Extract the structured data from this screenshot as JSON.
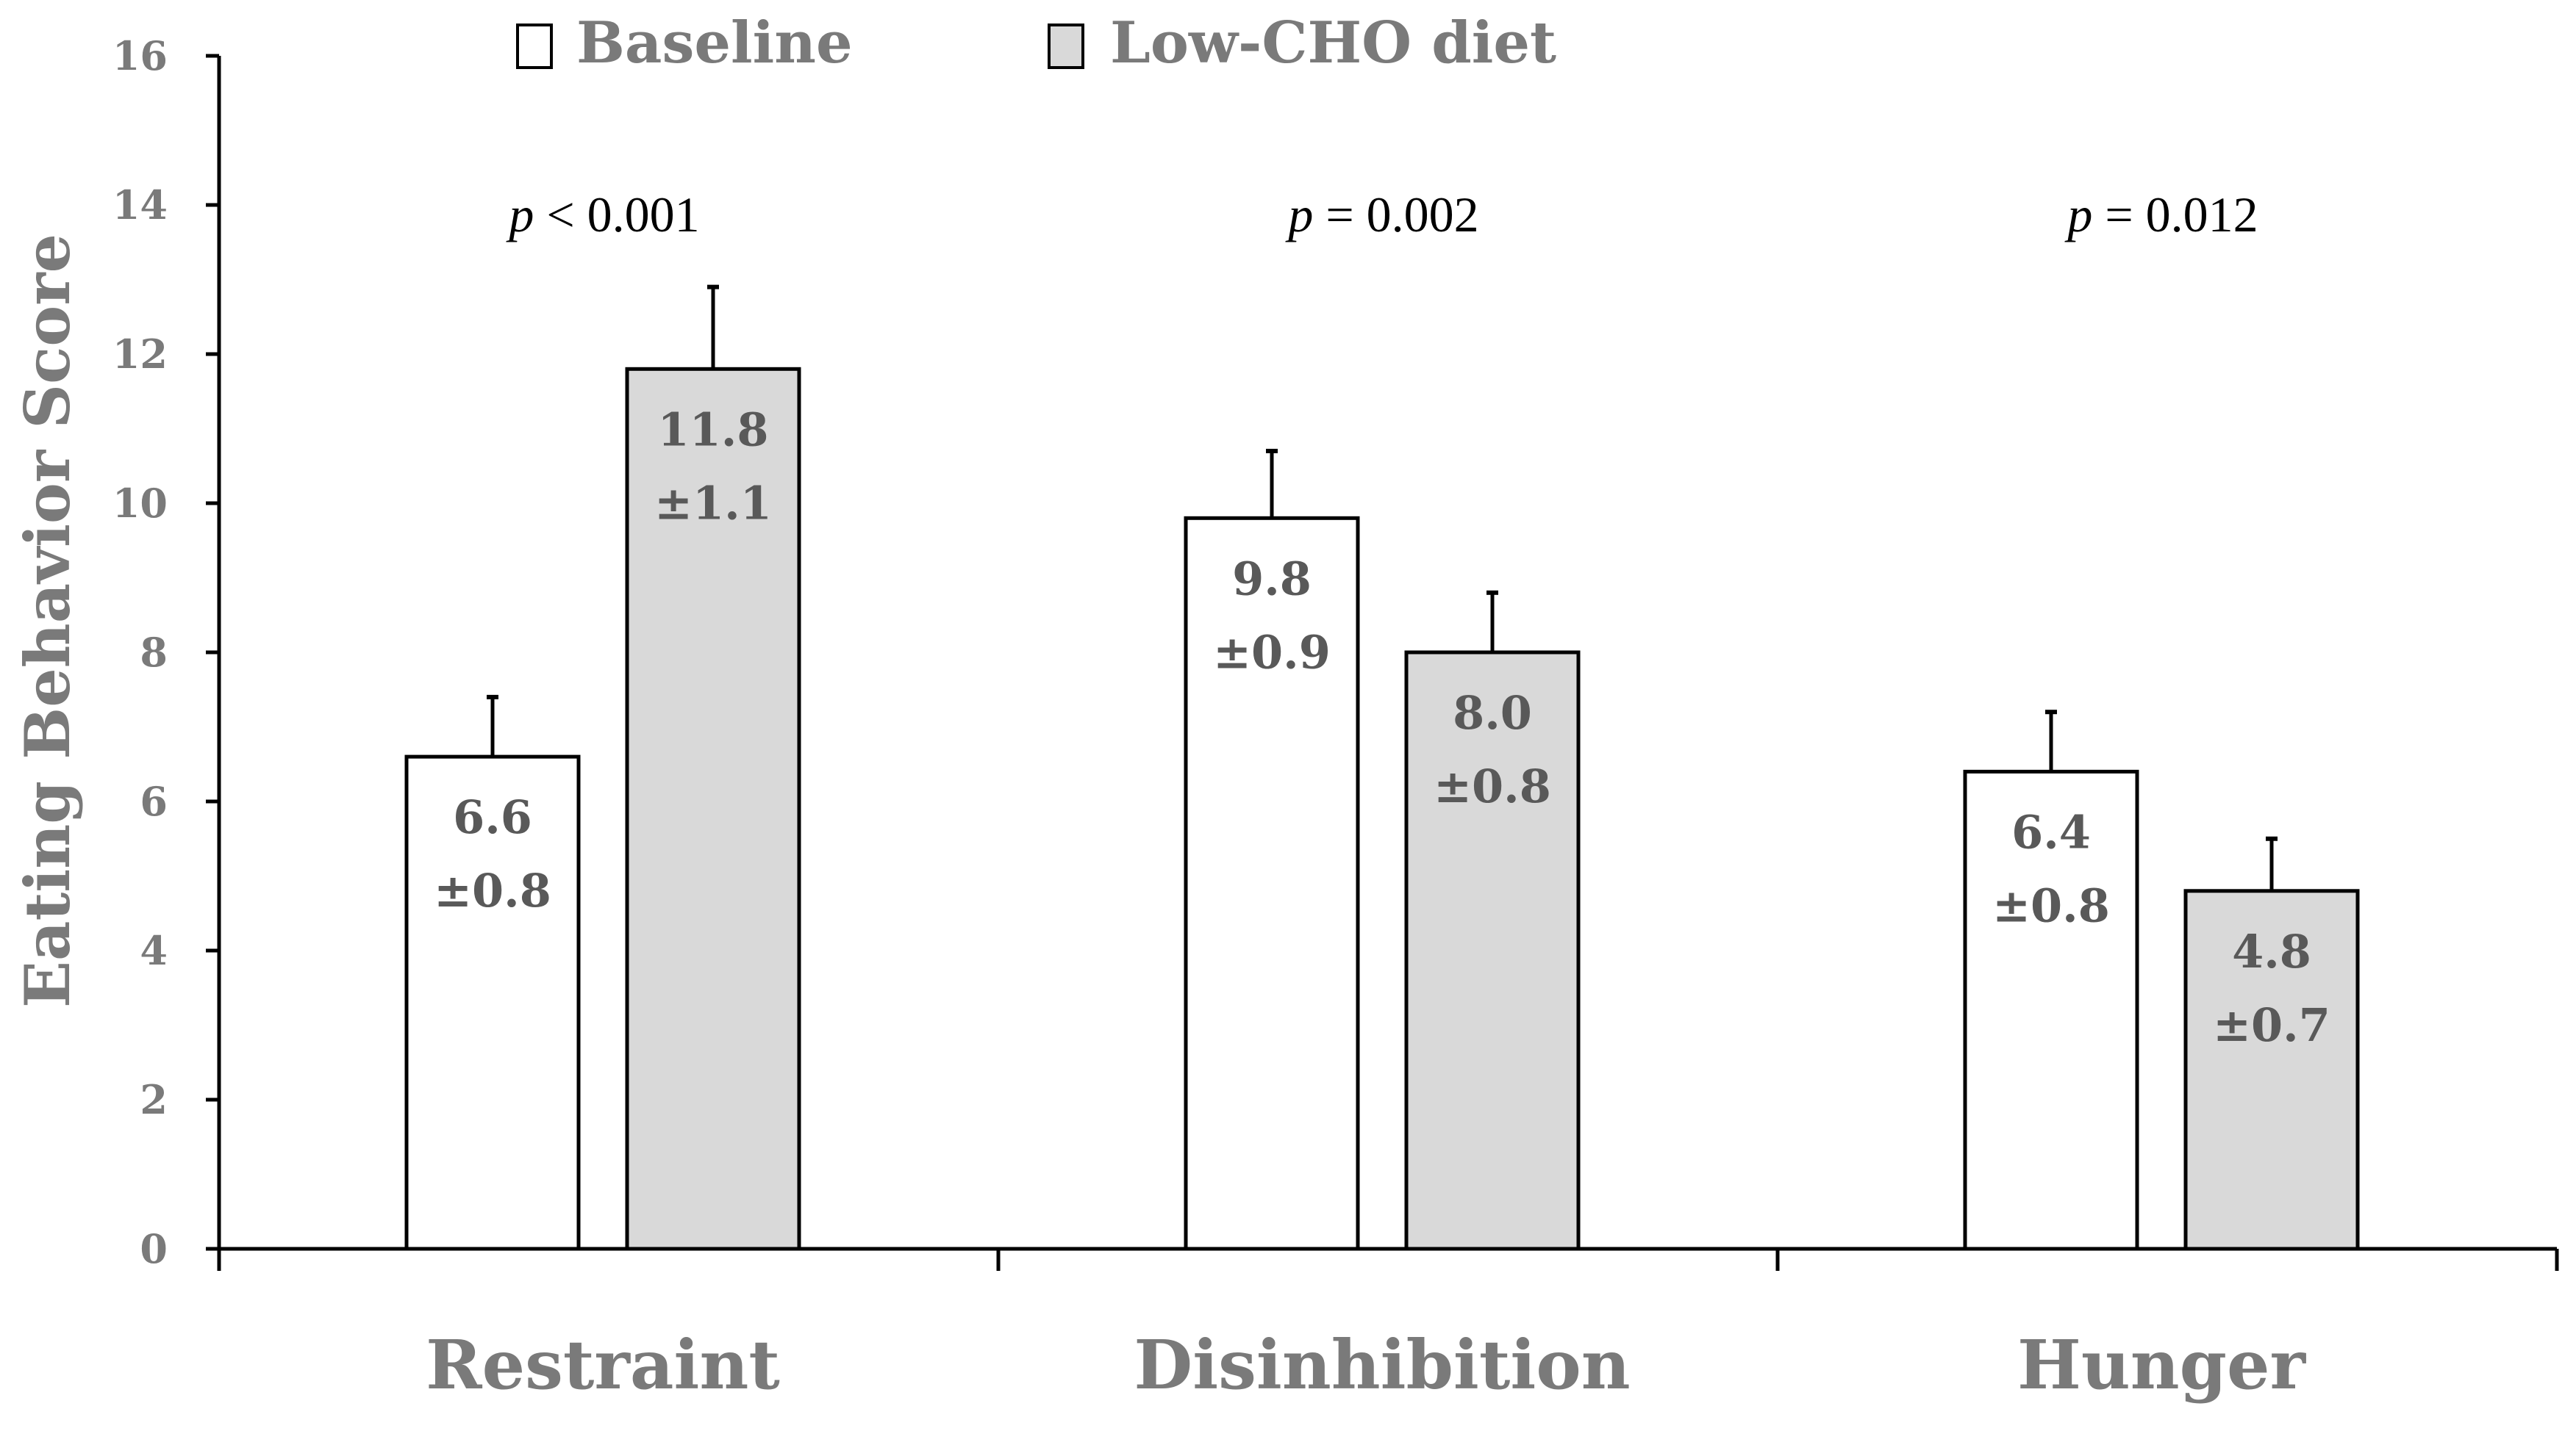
{
  "chart_data": {
    "type": "bar",
    "title": "",
    "xlabel": "",
    "ylabel": "Eating Behavior Score",
    "ylim": [
      0,
      16
    ],
    "yticks": [
      0,
      2,
      4,
      6,
      8,
      10,
      12,
      14,
      16
    ],
    "grid": false,
    "legend_position": "top-center",
    "categories": [
      "Restraint",
      "Disinhibition",
      "Hunger"
    ],
    "series": [
      {
        "name": "Baseline",
        "color": "#ffffff",
        "values": [
          6.6,
          9.8,
          6.4
        ],
        "errors": [
          0.8,
          0.9,
          0.8
        ],
        "value_labels": [
          "6.6",
          "9.8",
          "6.4"
        ],
        "error_labels": [
          "±0.8",
          "±0.9",
          "±0.8"
        ]
      },
      {
        "name": "Low-CHO diet",
        "color": "#d9d9d9",
        "values": [
          11.8,
          8.0,
          4.8
        ],
        "errors": [
          1.1,
          0.8,
          0.7
        ],
        "value_labels": [
          "11.8",
          "8.0",
          "4.8"
        ],
        "error_labels": [
          "±1.1",
          "±0.8",
          "±0.7"
        ]
      }
    ],
    "annotations": [
      {
        "category": "Restraint",
        "prefix": "p",
        "text": " < 0.001"
      },
      {
        "category": "Disinhibition",
        "prefix": "p",
        "text": " = 0.002"
      },
      {
        "category": "Hunger",
        "prefix": "p",
        "text": " = 0.012"
      }
    ]
  }
}
